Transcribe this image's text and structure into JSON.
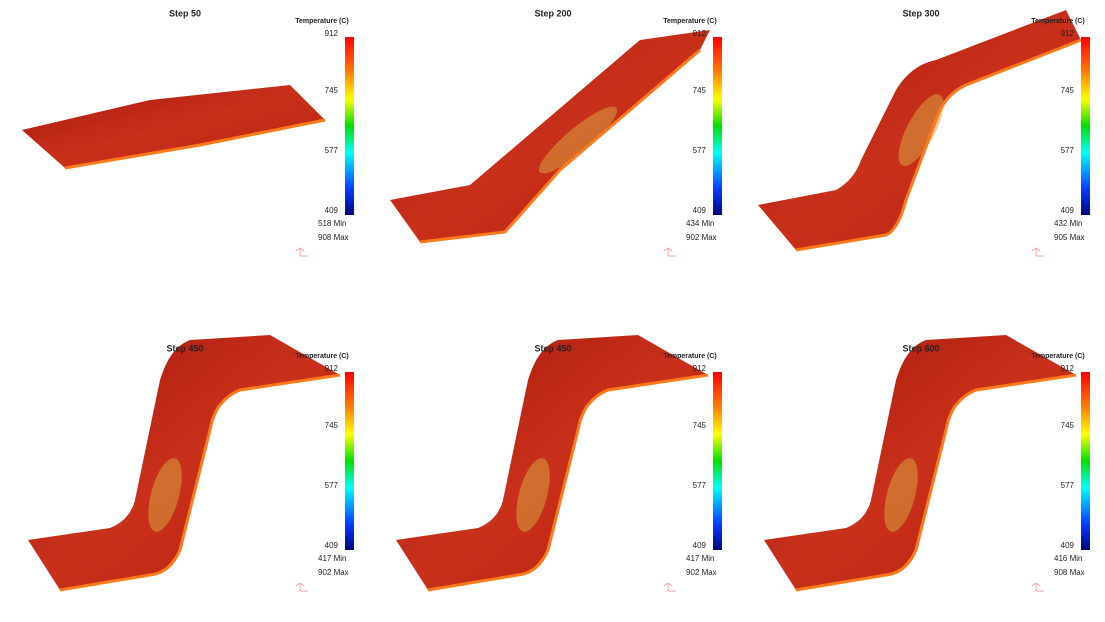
{
  "panels": [
    {
      "title": "Step  50",
      "legend_title": "Temperature (C)",
      "scale": [
        "912",
        "745",
        "577",
        "409"
      ],
      "min": "518  Min",
      "max": "908  Max"
    },
    {
      "title": "Step  200",
      "legend_title": "Temperature (C)",
      "scale": [
        "912",
        "745",
        "577",
        "409"
      ],
      "min": "434  Min",
      "max": "902  Max"
    },
    {
      "title": "Step  300",
      "legend_title": "Temperature (C)",
      "scale": [
        "912",
        "745",
        "577",
        "409"
      ],
      "min": "432  Min",
      "max": "905  Max"
    },
    {
      "title": "Step  450",
      "legend_title": "Temperature (C)",
      "scale": [
        "912",
        "745",
        "577",
        "409"
      ],
      "min": "417  Min",
      "max": "902  Max"
    },
    {
      "title": "Step  450",
      "legend_title": "Temperature (C)",
      "scale": [
        "912",
        "745",
        "577",
        "409"
      ],
      "min": "417  Min",
      "max": "902  Max"
    },
    {
      "title": "Step  600",
      "legend_title": "Temperature (C)",
      "scale": [
        "912",
        "745",
        "577",
        "409"
      ],
      "min": "416  Min",
      "max": "908  Max"
    }
  ]
}
